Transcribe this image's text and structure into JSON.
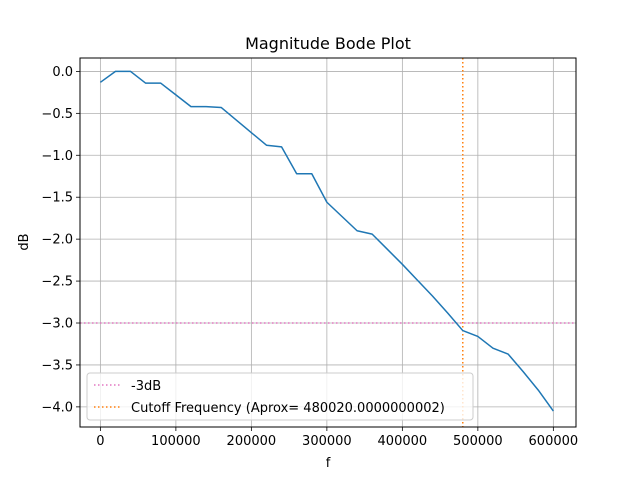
{
  "chart_data": {
    "type": "line",
    "title": "Magnitude Bode Plot",
    "xlabel": "f",
    "ylabel": "dB",
    "xlim": [
      -27000,
      630000
    ],
    "ylim": [
      -4.24,
      0.16
    ],
    "x_ticks": [
      0,
      100000,
      200000,
      300000,
      400000,
      500000,
      600000
    ],
    "x_tick_labels": [
      "0",
      "100000",
      "200000",
      "300000",
      "400000",
      "500000",
      "600000"
    ],
    "y_ticks": [
      0.0,
      -0.5,
      -1.0,
      -1.5,
      -2.0,
      -2.5,
      -3.0,
      -3.5,
      -4.0
    ],
    "y_tick_labels": [
      "0.0",
      "−0.5",
      "−1.0",
      "−1.5",
      "−2.0",
      "−2.5",
      "−3.0",
      "−3.5",
      "−4.0"
    ],
    "grid": true,
    "legend_position": "lower-left",
    "series": [
      {
        "color": "#1f77b4",
        "style": "solid",
        "x": [
          0,
          20000,
          40000,
          60000,
          80000,
          100000,
          120000,
          140000,
          160000,
          180000,
          200000,
          220000,
          240000,
          260000,
          280000,
          300000,
          320000,
          340000,
          360000,
          380000,
          400000,
          420000,
          440000,
          460000,
          480000,
          500000,
          520000,
          540000,
          560000,
          580000,
          600000
        ],
        "y": [
          -0.13,
          0.0,
          0.0,
          -0.14,
          -0.14,
          -0.28,
          -0.42,
          -0.42,
          -0.43,
          -0.58,
          -0.73,
          -0.88,
          -0.9,
          -1.22,
          -1.22,
          -1.56,
          -1.73,
          -1.9,
          -1.94,
          -2.12,
          -2.3,
          -2.49,
          -2.68,
          -2.88,
          -3.09,
          -3.16,
          -3.3,
          -3.37,
          -3.58,
          -3.8,
          -4.05
        ]
      }
    ],
    "reference_lines": [
      {
        "orientation": "horizontal",
        "value": -3,
        "name": "-3dB",
        "color": "#e377c2",
        "style": "dotted"
      },
      {
        "orientation": "vertical",
        "value": 480020.0000000002,
        "name": "Cutoff Frequency (Aprox= 480020.0000000002)",
        "color": "#ff7f0e",
        "style": "dotted"
      }
    ]
  }
}
